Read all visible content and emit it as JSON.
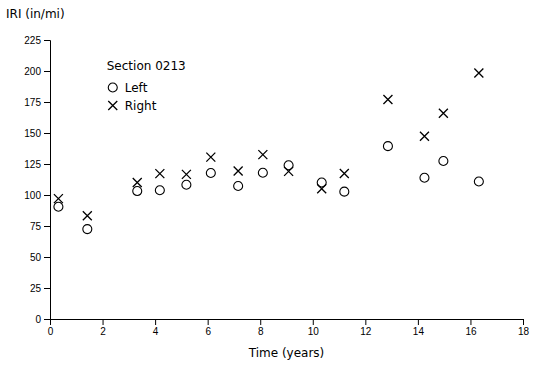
{
  "chart_data": {
    "type": "scatter",
    "xlabel": "Time (years)",
    "ylabel": "IRI (in/mi)",
    "annotation": "Section 0213",
    "x": [
      0.32,
      1.42,
      3.32,
      4.18,
      5.19,
      6.12,
      7.16,
      8.1,
      9.08,
      10.34,
      11.2,
      12.86,
      14.25,
      14.97,
      16.32
    ],
    "series": [
      {
        "name": "Left",
        "color": "black",
        "marker": "open-circle",
        "values": [
          90.54,
          72.48,
          103.17,
          103.79,
          108.25,
          117.77,
          107.27,
          117.94,
          123.96,
          110.06,
          102.72,
          139.4,
          113.92,
          127.43,
          110.92
        ]
      },
      {
        "name": "Right",
        "color": "black",
        "marker": "cross",
        "values": [
          97.06,
          83.29,
          110.05,
          117.26,
          116.62,
          130.57,
          119.31,
          132.59,
          119.08,
          105.0,
          117.34,
          177.02,
          147.33,
          165.99,
          198.33
        ]
      }
    ],
    "xlim": [
      0,
      18
    ],
    "ylim": [
      0,
      225
    ],
    "xticks": [
      0,
      2,
      4,
      6,
      8,
      10,
      12,
      14,
      16,
      18
    ],
    "yticks": [
      0,
      25,
      50,
      75,
      100,
      125,
      150,
      175,
      200,
      225
    ],
    "grid": false,
    "legend": "upper left"
  }
}
